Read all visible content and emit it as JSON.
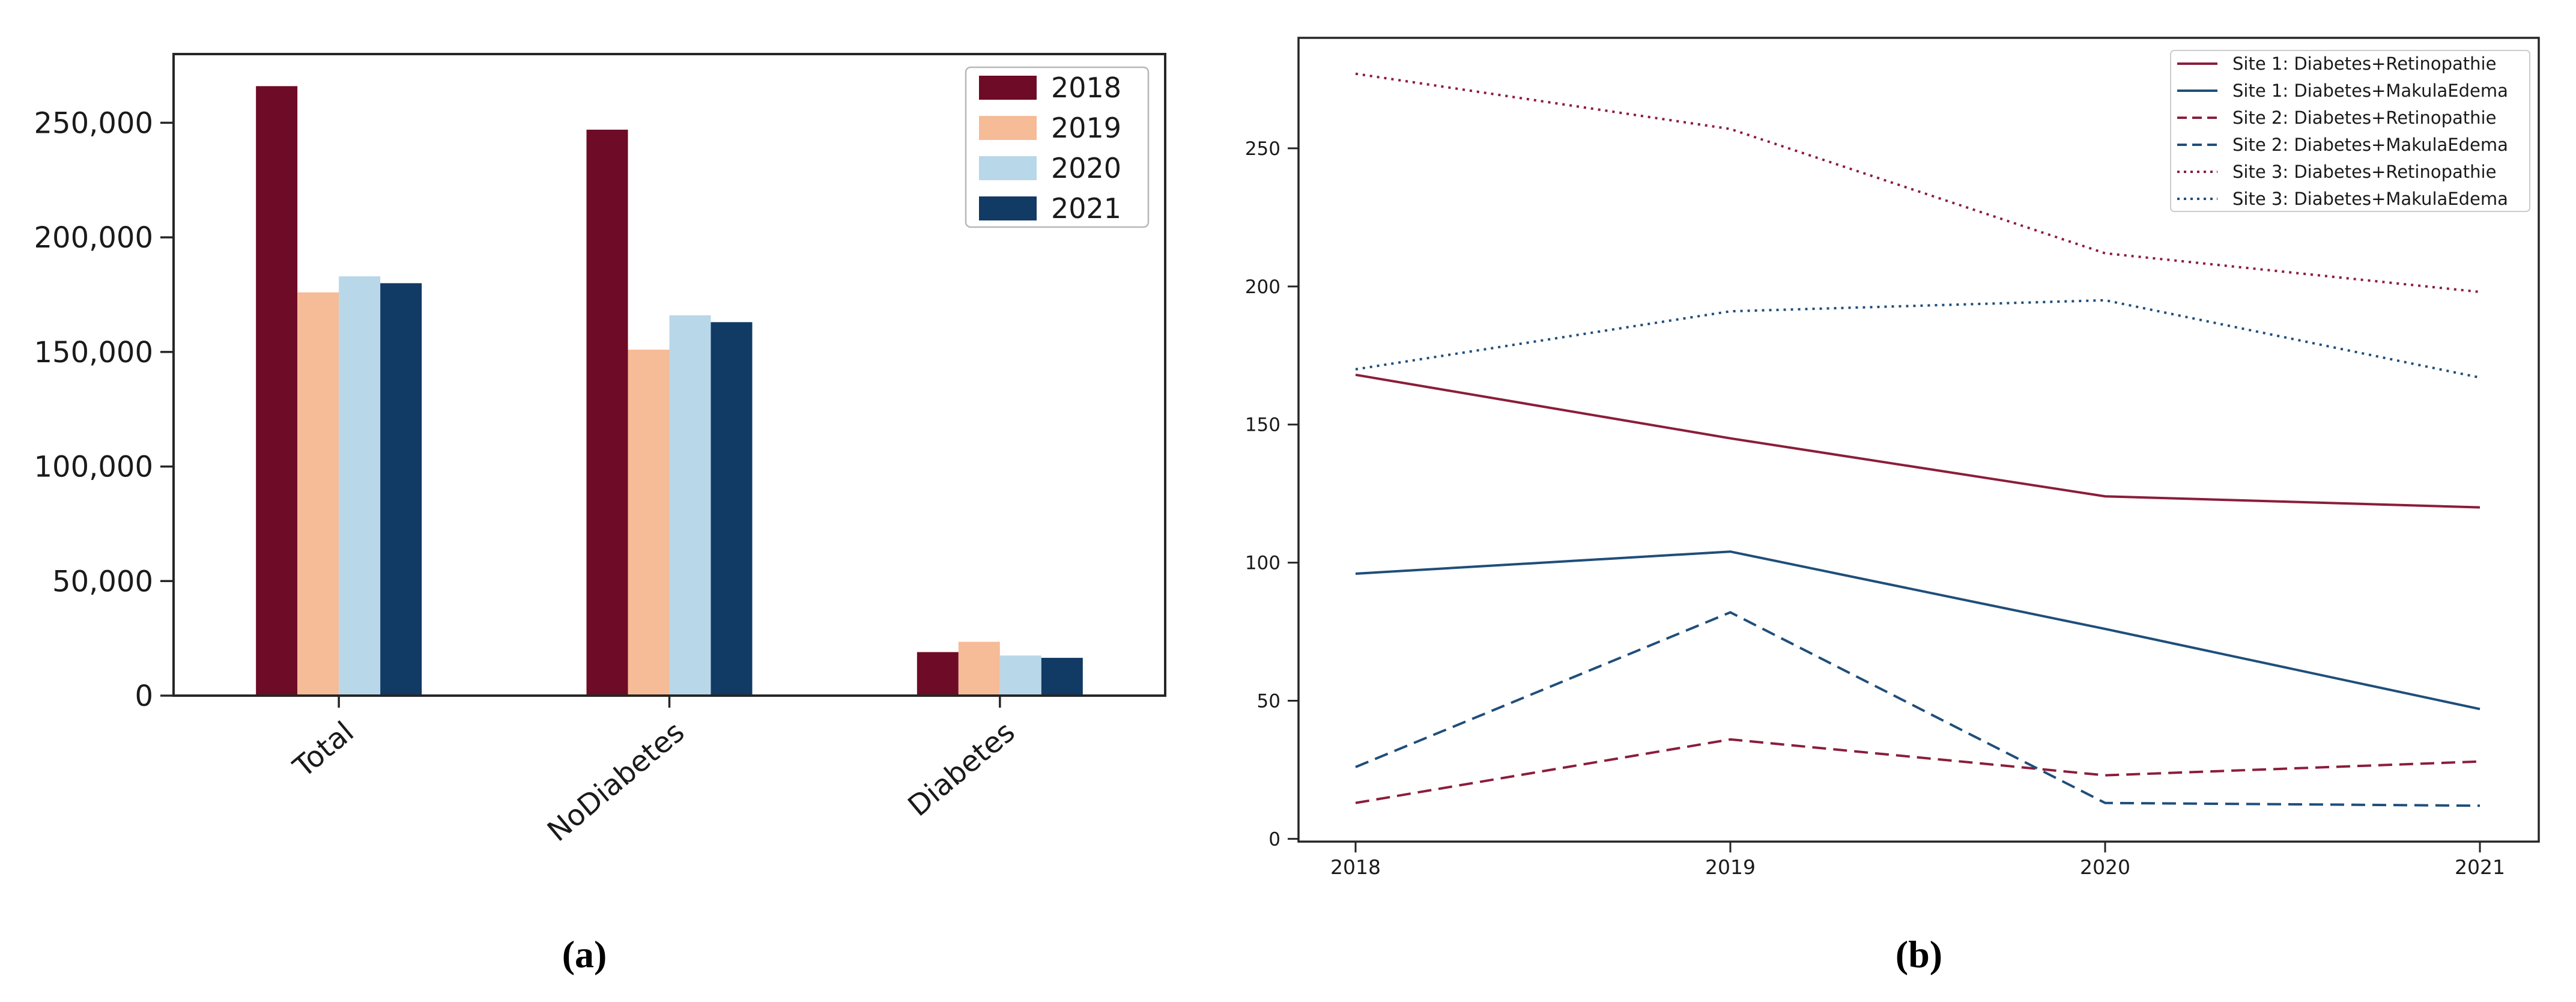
{
  "figure": {
    "background": "#ffffff",
    "caption_a": "(a)",
    "caption_b": "(b)"
  },
  "chart_data": [
    {
      "type": "bar",
      "title": "",
      "xlabel": "",
      "ylabel": "",
      "categories": [
        "Total",
        "NoDiabetes",
        "Diabetes"
      ],
      "series": [
        {
          "name": "2018",
          "color": "#6E0B26",
          "values": [
            266000,
            247000,
            19000
          ]
        },
        {
          "name": "2019",
          "color": "#F6BB97",
          "values": [
            176000,
            151000,
            23500
          ]
        },
        {
          "name": "2020",
          "color": "#B8D7E9",
          "values": [
            183000,
            166000,
            17500
          ]
        },
        {
          "name": "2021",
          "color": "#113A64",
          "values": [
            180000,
            163000,
            16500
          ]
        }
      ],
      "ylim": [
        0,
        280000
      ],
      "yticks": [
        0,
        50000,
        100000,
        150000,
        200000,
        250000
      ],
      "ytick_labels": [
        "0",
        "50,000",
        "100,000",
        "150,000",
        "200,000",
        "250,000"
      ],
      "grid": false,
      "legend_position": "upper right",
      "caption": "(a)"
    },
    {
      "type": "line",
      "title": "",
      "xlabel": "",
      "ylabel": "",
      "x": [
        2018,
        2019,
        2020,
        2021
      ],
      "xticks": [
        "2018",
        "2019",
        "2020",
        "2021"
      ],
      "series": [
        {
          "name": "Site 1: Diabetes+Retinopathie",
          "color": "#8B1D3B",
          "dash": "solid",
          "values": [
            168,
            145,
            124,
            120
          ]
        },
        {
          "name": "Site 1: Diabetes+MakulaEdema",
          "color": "#1F4E7A",
          "dash": "solid",
          "values": [
            96,
            104,
            76,
            47
          ]
        },
        {
          "name": "Site 2: Diabetes+Retinopathie",
          "color": "#8B1D3B",
          "dash": "dashed",
          "values": [
            13,
            36,
            23,
            28
          ]
        },
        {
          "name": "Site 2: Diabetes+MakulaEdema",
          "color": "#1F4E7A",
          "dash": "dashed",
          "values": [
            26,
            82,
            13,
            12
          ]
        },
        {
          "name": "Site 3: Diabetes+Retinopathie",
          "color": "#8B1D3B",
          "dash": "dotted",
          "values": [
            277,
            257,
            212,
            198
          ]
        },
        {
          "name": "Site 3: Diabetes+MakulaEdema",
          "color": "#1F4E7A",
          "dash": "dotted",
          "values": [
            170,
            191,
            195,
            167
          ]
        }
      ],
      "ylim": [
        -1,
        290
      ],
      "yticks": [
        0,
        50,
        100,
        150,
        200,
        250
      ],
      "grid": false,
      "legend_position": "upper right",
      "caption": "(b)"
    }
  ]
}
